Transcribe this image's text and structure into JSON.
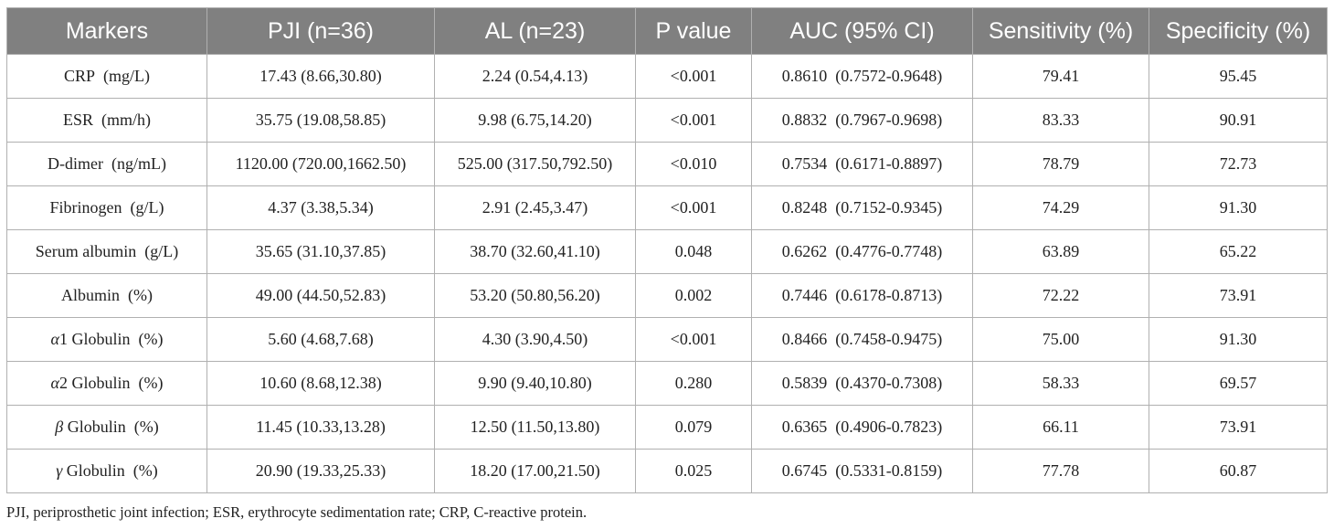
{
  "table": {
    "headers": [
      "Markers",
      "PJI (n=36)",
      "AL (n=23)",
      "P value",
      "AUC (95% CI)",
      "Sensitivity (%)",
      "Specificity (%)"
    ],
    "rows": [
      {
        "marker": "CRP (mg/L)",
        "pji": "17.43 (8.66,30.80)",
        "al": "2.24 (0.54,4.13)",
        "p": "<0.001",
        "auc": "0.8610 (0.7572-0.9648)",
        "sens": "79.41",
        "spec": "95.45"
      },
      {
        "marker": "ESR (mm/h)",
        "pji": "35.75 (19.08,58.85)",
        "al": "9.98 (6.75,14.20)",
        "p": "<0.001",
        "auc": "0.8832 (0.7967-0.9698)",
        "sens": "83.33",
        "spec": "90.91"
      },
      {
        "marker": "D-dimer (ng/mL)",
        "pji": "1120.00 (720.00,1662.50)",
        "al": "525.00 (317.50,792.50)",
        "p": "<0.010",
        "auc": "0.7534 (0.6171-0.8897)",
        "sens": "78.79",
        "spec": "72.73"
      },
      {
        "marker": "Fibrinogen (g/L)",
        "pji": "4.37 (3.38,5.34)",
        "al": "2.91 (2.45,3.47)",
        "p": "<0.001",
        "auc": "0.8248 (0.7152-0.9345)",
        "sens": "74.29",
        "spec": "91.30"
      },
      {
        "marker": "Serum albumin (g/L)",
        "pji": "35.65 (31.10,37.85)",
        "al": "38.70 (32.60,41.10)",
        "p": "0.048",
        "auc": "0.6262 (0.4776-0.7748)",
        "sens": "63.89",
        "spec": "65.22"
      },
      {
        "marker": "Albumin (%)",
        "pji": "49.00 (44.50,52.83)",
        "al": "53.20 (50.80,56.20)",
        "p": "0.002",
        "auc": "0.7446 (0.6178-0.8713)",
        "sens": "72.22",
        "spec": "73.91"
      },
      {
        "marker_greek": "α",
        "marker": "1 Globulin (%)",
        "pji": "5.60 (4.68,7.68)",
        "al": "4.30 (3.90,4.50)",
        "p": "<0.001",
        "auc": "0.8466 (0.7458-0.9475)",
        "sens": "75.00",
        "spec": "91.30"
      },
      {
        "marker_greek": "α",
        "marker": "2 Globulin (%)",
        "pji": "10.60 (8.68,12.38)",
        "al": "9.90 (9.40,10.80)",
        "p": "0.280",
        "auc": "0.5839 (0.4370-0.7308)",
        "sens": "58.33",
        "spec": "69.57"
      },
      {
        "marker_greek": "β",
        "marker": " Globulin (%)",
        "pji": "11.45 (10.33,13.28)",
        "al": "12.50 (11.50,13.80)",
        "p": "0.079",
        "auc": "0.6365 (0.4906-0.7823)",
        "sens": "66.11",
        "spec": "73.91"
      },
      {
        "marker_greek": "γ",
        "marker": " Globulin (%)",
        "pji": "20.90 (19.33,25.33)",
        "al": "18.20 (17.00,21.50)",
        "p": "0.025",
        "auc": "0.6745 (0.5331-0.8159)",
        "sens": "77.78",
        "spec": "60.87"
      }
    ]
  },
  "footnote": "PJI, periprosthetic joint infection; ESR, erythrocyte sedimentation rate; CRP, C-reactive protein."
}
